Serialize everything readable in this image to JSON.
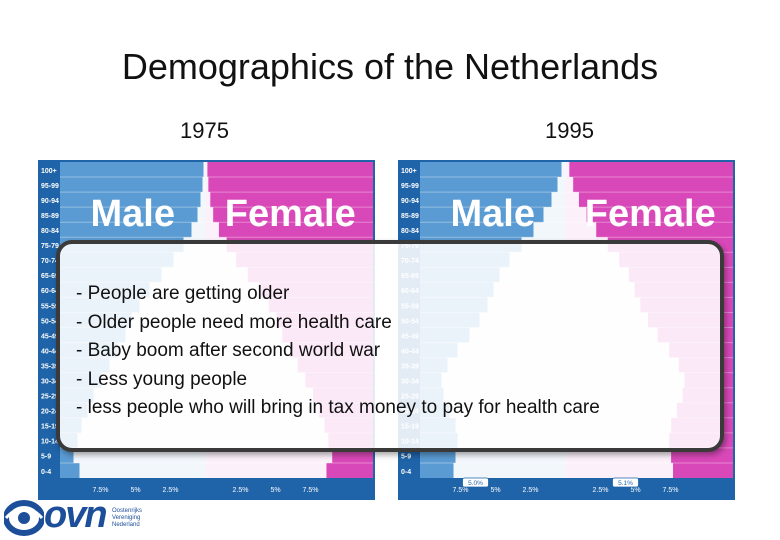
{
  "slide": {
    "title": "Demographics of the Netherlands",
    "year_left": "1975",
    "year_right": "1995"
  },
  "pyramid_1975": {
    "age_groups": [
      "100+",
      "95-99",
      "90-94",
      "85-89",
      "80-84",
      "75-79",
      "70-74",
      "65-69",
      "60-64",
      "55-59",
      "50-54",
      "45-49",
      "40-44",
      "35-39",
      "30-34",
      "25-29",
      "20-24",
      "15-19",
      "10-14",
      "5-9",
      "0-4"
    ],
    "male_label": "Male",
    "female_label": "Female",
    "x_ticks": [
      "7.5%",
      "5%",
      "2.5%",
      "2.5%",
      "5%",
      "7.5%"
    ],
    "colors": {
      "male_bg": "#5b9bd3",
      "female_bg": "#d948b8",
      "population": "#ffffff"
    }
  },
  "pyramid_1995": {
    "age_groups": [
      "100+",
      "95-99",
      "90-94",
      "85-89",
      "80-84",
      "75-79",
      "70-74",
      "65-69",
      "60-64",
      "55-59",
      "50-54",
      "45-49",
      "40-44",
      "35-39",
      "30-34",
      "25-29",
      "20-24",
      "15-19",
      "10-14",
      "5-9",
      "0-4"
    ],
    "male_label": "Male",
    "female_label": "Female",
    "x_ticks": [
      "7.5%",
      "5%",
      "2.5%",
      "2.5%",
      "5%",
      "7.5%"
    ],
    "annotations": [
      "5.0%",
      "5.1%"
    ],
    "colors": {
      "male_bg": "#5b9bd3",
      "female_bg": "#d948b8",
      "population": "#ffffff"
    }
  },
  "callout": {
    "points": [
      "- People are getting older",
      "- Older people need more health care",
      "- Baby boom after second world war",
      "- Less young people",
      "- less people who will bring in tax money to pay for health care"
    ]
  },
  "logo": {
    "letters": "ovn",
    "subtitle_lines": [
      "Oostenrijks",
      "Vereniging",
      "Nederland"
    ],
    "icon": "eye-logo-icon",
    "color": "#1d4e9a"
  }
}
